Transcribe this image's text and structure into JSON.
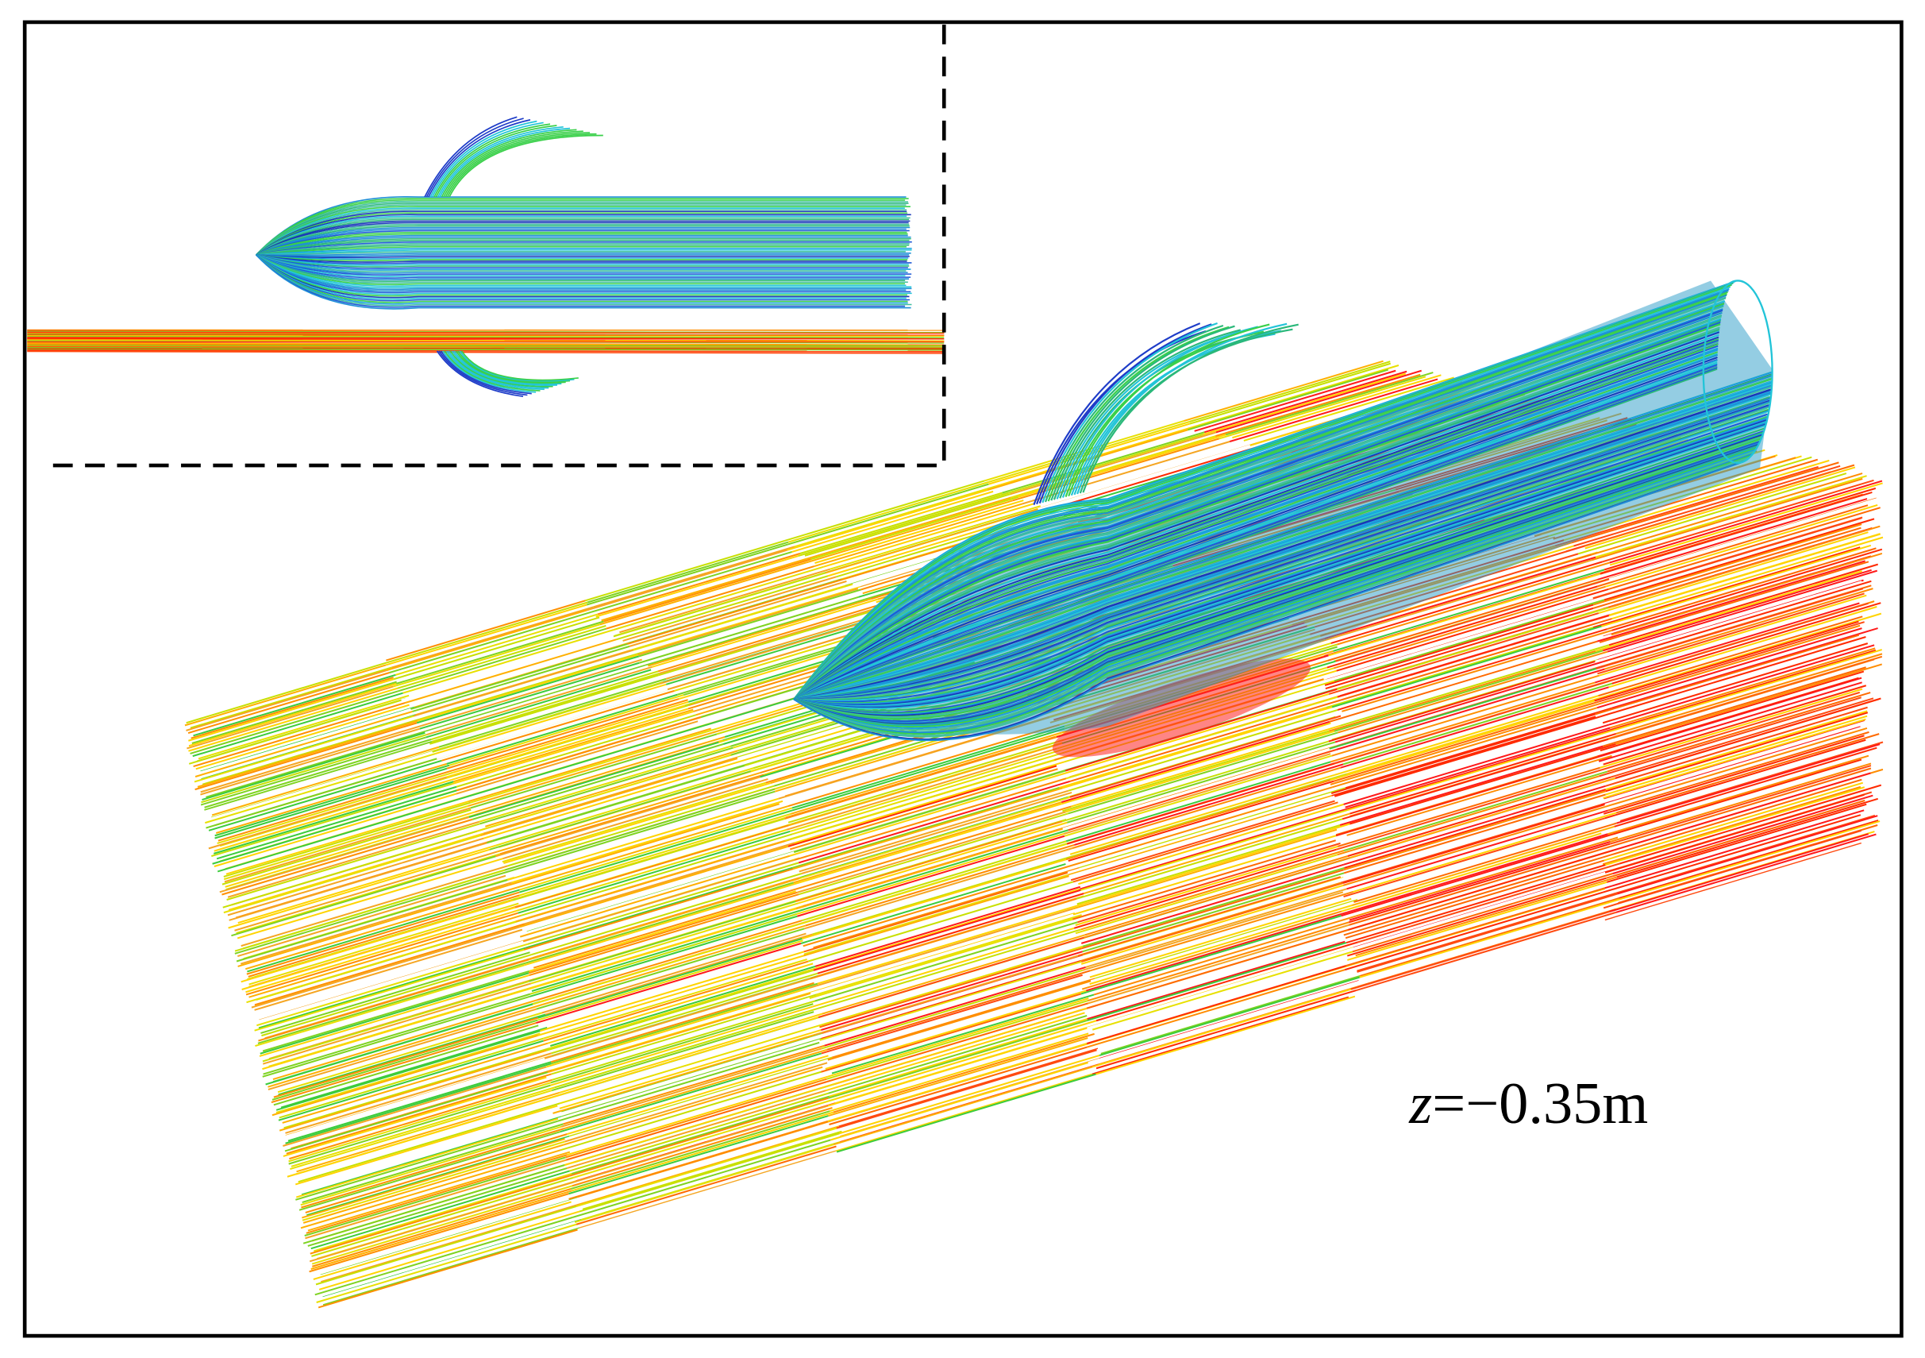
{
  "annotation": {
    "variable": "z",
    "value": "=−0.35m"
  }
}
